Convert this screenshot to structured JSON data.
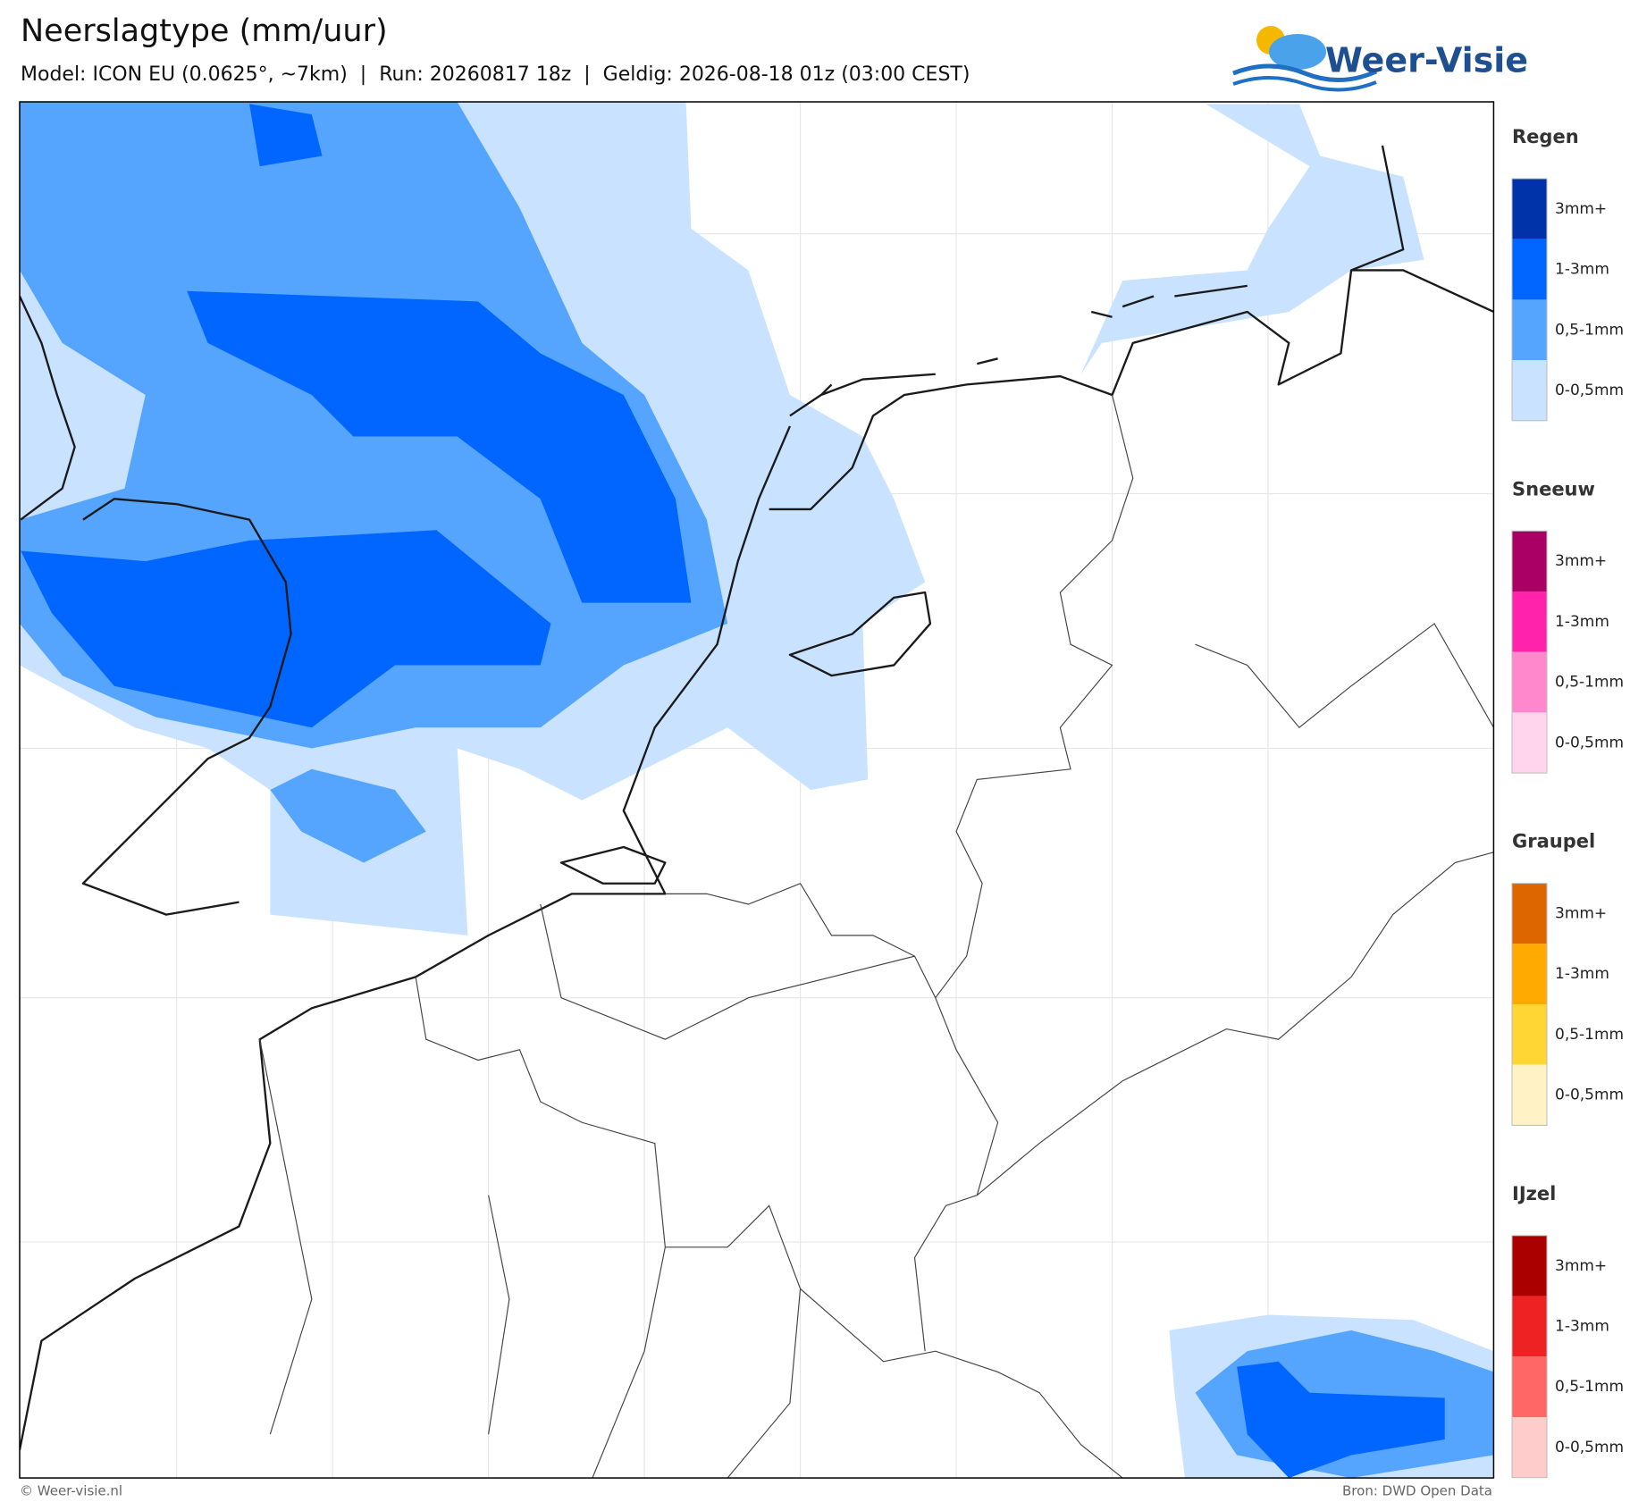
{
  "header": {
    "title": "Neerslagtype (mm/uur)",
    "subtitle": "Model: ICON EU (0.0625°, ~7km)  |  Run: 20260817 18z  |  Geldig: 2026-08-18 01z (03:00 CEST)",
    "logo": "Weer-Visie"
  },
  "legend": [
    {
      "title": "Regen",
      "items": [
        {
          "label": "3mm+",
          "color": "#0033aa"
        },
        {
          "label": "1-3mm",
          "color": "#0066ff"
        },
        {
          "label": "0,5-1mm",
          "color": "#55a5ff"
        },
        {
          "label": "0-0,5mm",
          "color": "#c8e2ff"
        }
      ]
    },
    {
      "title": "Sneeuw",
      "items": [
        {
          "label": "3mm+",
          "color": "#aa0066"
        },
        {
          "label": "1-3mm",
          "color": "#ff22aa"
        },
        {
          "label": "0,5-1mm",
          "color": "#ff88cc"
        },
        {
          "label": "0-0,5mm",
          "color": "#ffd4ec"
        }
      ]
    },
    {
      "title": "Graupel",
      "items": [
        {
          "label": "3mm+",
          "color": "#dd6600"
        },
        {
          "label": "1-3mm",
          "color": "#ffaa00"
        },
        {
          "label": "0,5-1mm",
          "color": "#ffd633"
        },
        {
          "label": "0-0,5mm",
          "color": "#fff2c4"
        }
      ]
    },
    {
      "title": "IJzel",
      "items": [
        {
          "label": "3mm+",
          "color": "#aa0000"
        },
        {
          "label": "1-3mm",
          "color": "#ee2222"
        },
        {
          "label": "0,5-1mm",
          "color": "#ff6666"
        },
        {
          "label": "0-0,5mm",
          "color": "#ffcccc"
        }
      ]
    }
  ],
  "footer": {
    "left": "© Weer-visie.nl",
    "right": "Bron: DWD Open Data"
  }
}
